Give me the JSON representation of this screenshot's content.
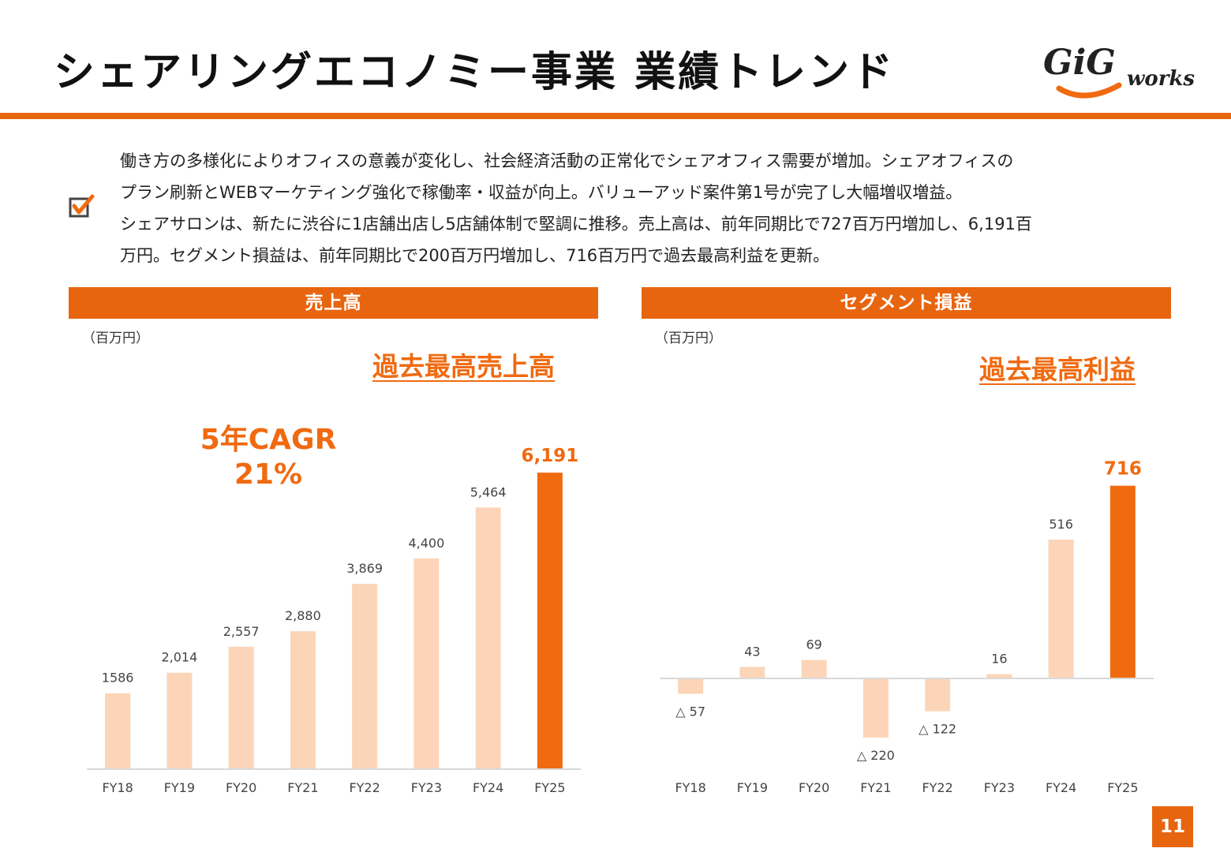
{
  "header": {
    "title": "シェアリングエコノミー事業 業績トレンド",
    "logo_text_main": "GiG",
    "logo_text_sub": "works"
  },
  "summary": {
    "icon": "checkbox-checked-icon",
    "lines": [
      "働き方の多様化によりオフィスの意義が変化し、社会経済活動の正常化でシェアオフィス需要が増加。シェアオフィスの",
      "プラン刷新とWEBマーケティング強化で稼働率・収益が向上。バリューアッド案件第1号が完了し大幅増収増益。",
      "シェアサロンは、新たに渋谷に1店舗出店し5店舗体制で堅調に推移。売上高は、前年同期比で727百万円増加し、6,191百",
      "万円。セグメント損益は、前年同期比で200百万円増加し、716百万円で過去最高利益を更新。"
    ]
  },
  "colors": {
    "accent": "#e8650f",
    "highlight_bar": "#f06a10",
    "bar": "#fcd5b8",
    "label": "#444444",
    "axis": "#d9d9d9"
  },
  "panels": {
    "sales": {
      "heading": "売上高",
      "unit": "（百万円）",
      "callout": "過去最高売上高",
      "cagr_line1": "5年CAGR",
      "cagr_line2": "21%"
    },
    "profit": {
      "heading": "セグメント損益",
      "unit": "（百万円）",
      "callout": "過去最高利益"
    }
  },
  "chart_data": [
    {
      "type": "bar",
      "title": "売上高",
      "unit": "百万円",
      "categories": [
        "FY18",
        "FY19",
        "FY20",
        "FY21",
        "FY22",
        "FY23",
        "FY24",
        "FY25"
      ],
      "values": [
        1586,
        2014,
        2557,
        2880,
        3869,
        4400,
        5464,
        6191
      ],
      "labels": [
        "1586",
        "2,014",
        "2,557",
        "2,880",
        "3,869",
        "4,400",
        "5,464",
        "6,191"
      ],
      "highlight_index": 7,
      "ylim": [
        0,
        7000
      ],
      "grid": false,
      "legend": "none"
    },
    {
      "type": "bar",
      "title": "セグメント損益",
      "unit": "百万円",
      "categories": [
        "FY18",
        "FY19",
        "FY20",
        "FY21",
        "FY22",
        "FY23",
        "FY24",
        "FY25"
      ],
      "values": [
        -57,
        43,
        69,
        -220,
        -122,
        16,
        516,
        716
      ],
      "labels": [
        "△ 57",
        "43",
        "69",
        "△ 220",
        "△ 122",
        "16",
        "516",
        "716"
      ],
      "highlight_index": 7,
      "ylim": [
        -300,
        850
      ],
      "grid": false,
      "legend": "none"
    }
  ],
  "footer": {
    "page_number": "11"
  }
}
